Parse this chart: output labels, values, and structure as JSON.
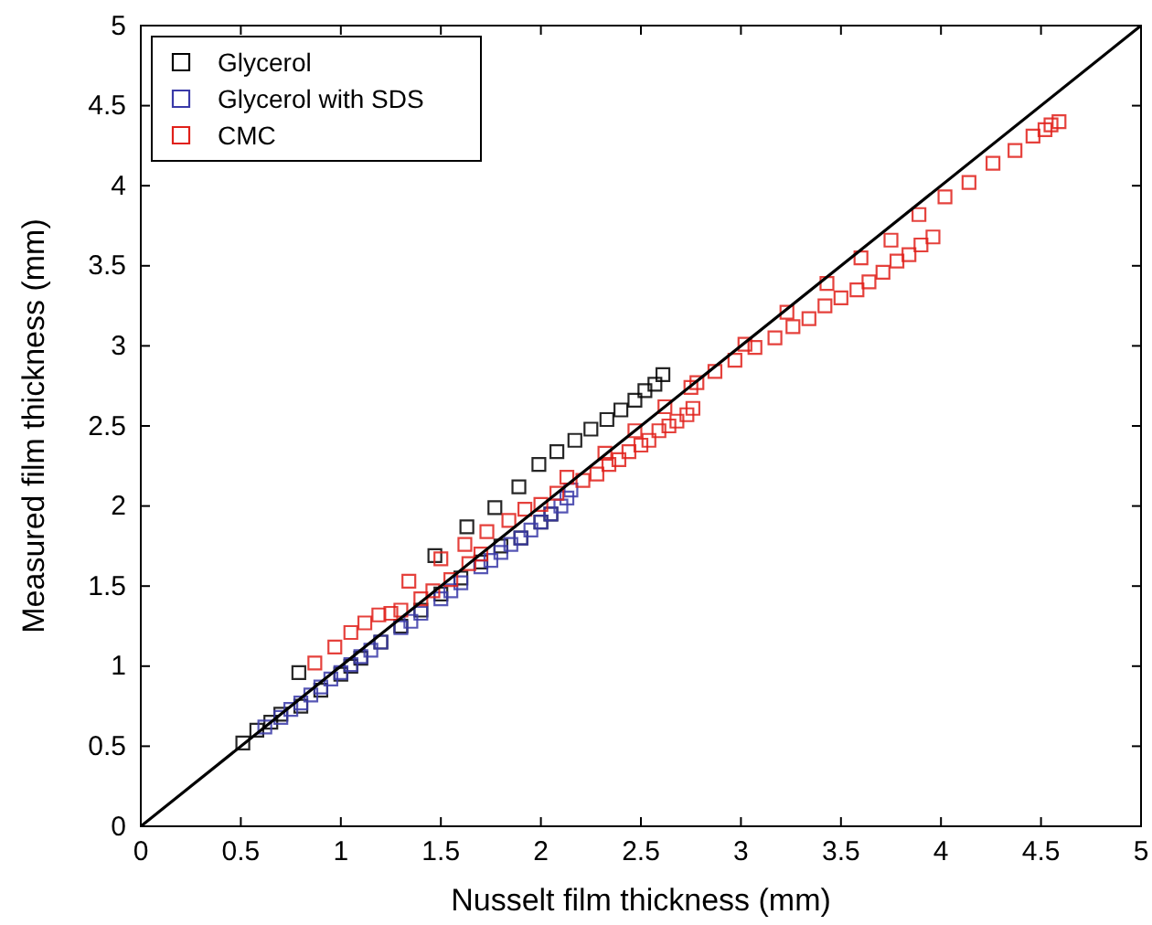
{
  "chart_data": {
    "type": "scatter",
    "xlabel": "Nusselt film thickness (mm)",
    "ylabel": "Measured film thickness (mm)",
    "xlim": [
      0,
      5
    ],
    "ylim": [
      0,
      5
    ],
    "xticks": [
      0,
      0.5,
      1,
      1.5,
      2,
      2.5,
      3,
      3.5,
      4,
      4.5,
      5
    ],
    "yticks": [
      0,
      0.5,
      1,
      1.5,
      2,
      2.5,
      3,
      3.5,
      4,
      4.5,
      5
    ],
    "grid": false,
    "legend": "top left",
    "marker": "square",
    "series": [
      {
        "name": "Glycerol",
        "color": "#000000",
        "x": [
          0.51,
          0.58,
          0.65,
          0.7,
          0.79,
          0.8,
          0.9,
          1.0,
          1.05,
          1.1,
          1.2,
          1.3,
          1.4,
          1.5,
          1.6,
          1.7,
          1.8,
          1.9,
          2.0,
          2.05,
          1.47,
          1.63,
          1.77,
          1.89,
          1.99,
          2.08,
          2.17,
          2.25,
          2.33,
          2.4,
          2.47,
          2.52,
          2.57,
          2.61
        ],
        "values": [
          0.52,
          0.6,
          0.65,
          0.7,
          0.96,
          0.75,
          0.85,
          0.95,
          1.0,
          1.05,
          1.15,
          1.25,
          1.35,
          1.45,
          1.55,
          1.65,
          1.75,
          1.8,
          1.9,
          1.95,
          1.69,
          1.87,
          1.99,
          2.12,
          2.26,
          2.34,
          2.41,
          2.48,
          2.54,
          2.6,
          2.66,
          2.72,
          2.76,
          2.82
        ]
      },
      {
        "name": "Glycerol with SDS",
        "color": "#3a3aa8",
        "x": [
          0.62,
          0.7,
          0.75,
          0.8,
          0.85,
          0.9,
          0.95,
          1.0,
          1.05,
          1.1,
          1.15,
          1.2,
          1.3,
          1.35,
          1.4,
          1.5,
          1.55,
          1.6,
          1.7,
          1.75,
          1.8,
          1.85,
          1.9,
          1.95,
          2.0,
          2.05,
          2.1,
          2.13,
          2.15
        ],
        "values": [
          0.62,
          0.68,
          0.73,
          0.77,
          0.82,
          0.87,
          0.92,
          0.96,
          1.01,
          1.06,
          1.1,
          1.15,
          1.24,
          1.28,
          1.33,
          1.42,
          1.47,
          1.52,
          1.62,
          1.66,
          1.71,
          1.76,
          1.8,
          1.85,
          1.9,
          1.95,
          2.0,
          2.05,
          2.1
        ]
      },
      {
        "name": "CMC",
        "color": "#e0201a",
        "x": [
          0.87,
          0.97,
          1.05,
          1.12,
          1.19,
          1.25,
          1.3,
          1.34,
          1.4,
          1.46,
          1.5,
          1.55,
          1.62,
          1.64,
          1.7,
          1.73,
          1.84,
          1.92,
          2.0,
          2.08,
          2.13,
          2.21,
          2.28,
          2.34,
          2.39,
          2.44,
          2.5,
          2.54,
          2.59,
          2.64,
          2.68,
          2.73,
          2.76,
          2.32,
          2.47,
          2.62,
          2.75,
          2.78,
          2.87,
          2.97,
          3.02,
          3.07,
          3.17,
          3.23,
          3.26,
          3.34,
          3.42,
          3.43,
          3.5,
          3.58,
          3.6,
          3.64,
          3.71,
          3.75,
          3.78,
          3.84,
          3.89,
          3.9,
          3.96,
          4.02,
          4.14,
          4.26,
          4.37,
          4.46,
          4.52,
          4.55,
          4.59
        ],
        "values": [
          1.02,
          1.12,
          1.21,
          1.27,
          1.32,
          1.33,
          1.35,
          1.53,
          1.42,
          1.47,
          1.67,
          1.54,
          1.76,
          1.64,
          1.7,
          1.84,
          1.91,
          1.98,
          2.01,
          2.08,
          2.18,
          2.16,
          2.2,
          2.26,
          2.29,
          2.34,
          2.38,
          2.41,
          2.47,
          2.5,
          2.53,
          2.57,
          2.61,
          2.33,
          2.47,
          2.62,
          2.74,
          2.77,
          2.84,
          2.91,
          3.01,
          2.99,
          3.05,
          3.21,
          3.12,
          3.17,
          3.25,
          3.39,
          3.3,
          3.35,
          3.55,
          3.4,
          3.46,
          3.66,
          3.53,
          3.57,
          3.82,
          3.63,
          3.68,
          3.93,
          4.02,
          4.14,
          4.22,
          4.31,
          4.35,
          4.38,
          4.4
        ]
      },
      {
        "type": "line",
        "color": "#000000",
        "marker": "none",
        "x": [
          0,
          5
        ],
        "values": [
          0,
          5
        ]
      }
    ]
  }
}
